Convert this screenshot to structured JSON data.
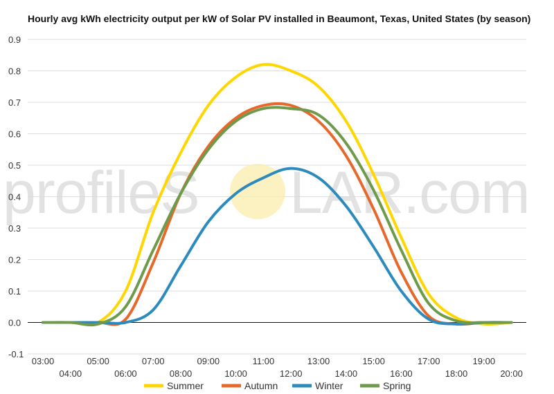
{
  "chart_data": {
    "type": "line",
    "title": "Hourly avg kWh electricity output per kW of Solar PV installed in Beaumont, Texas, United States (by season)",
    "xlabel": "",
    "ylabel": "",
    "x": [
      "03:00",
      "04:00",
      "05:00",
      "06:00",
      "07:00",
      "08:00",
      "09:00",
      "10:00",
      "11:00",
      "12:00",
      "13:00",
      "14:00",
      "15:00",
      "16:00",
      "17:00",
      "18:00",
      "19:00",
      "20:00"
    ],
    "ylim": [
      -0.1,
      0.9
    ],
    "yticks": [
      "-0.1",
      "0.0",
      "0.1",
      "0.2",
      "0.3",
      "0.4",
      "0.5",
      "0.6",
      "0.7",
      "0.8",
      "0.9"
    ],
    "grid": true,
    "legend": "bottom",
    "series": [
      {
        "name": "Summer",
        "color": "#FFD700",
        "values": [
          0,
          0,
          0,
          0.1,
          0.35,
          0.54,
          0.69,
          0.78,
          0.82,
          0.8,
          0.75,
          0.64,
          0.47,
          0.27,
          0.09,
          0.015,
          -0.005,
          0
        ]
      },
      {
        "name": "Autumn",
        "color": "#E6682B",
        "values": [
          0,
          0,
          0,
          0.01,
          0.19,
          0.41,
          0.56,
          0.65,
          0.69,
          0.69,
          0.64,
          0.53,
          0.36,
          0.16,
          0.02,
          -0.005,
          0,
          0
        ]
      },
      {
        "name": "Winter",
        "color": "#2C8BBE",
        "values": [
          0,
          0,
          0,
          0,
          0.04,
          0.18,
          0.32,
          0.41,
          0.46,
          0.49,
          0.46,
          0.37,
          0.24,
          0.1,
          0.01,
          -0.005,
          0,
          0
        ]
      },
      {
        "name": "Spring",
        "color": "#6E9A4B",
        "values": [
          0,
          0,
          -0.005,
          0.05,
          0.23,
          0.41,
          0.55,
          0.64,
          0.68,
          0.68,
          0.66,
          0.57,
          0.42,
          0.23,
          0.06,
          0.005,
          0,
          0
        ]
      }
    ]
  },
  "watermark": {
    "text_left": "profileS",
    "text_right": "LAR.com"
  }
}
